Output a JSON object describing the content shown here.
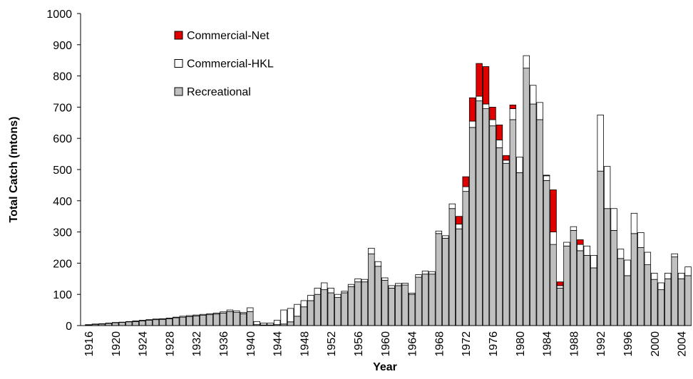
{
  "chart_data": {
    "type": "stacked_bar",
    "x_label": "Year",
    "y_label": "Total Catch (mtons)",
    "categories": [
      "1916",
      null,
      null,
      null,
      "1920",
      null,
      null,
      null,
      "1924",
      null,
      null,
      null,
      "1928",
      null,
      null,
      null,
      "1932",
      null,
      null,
      null,
      "1936",
      null,
      null,
      null,
      "1940",
      null,
      null,
      null,
      "1944",
      null,
      null,
      null,
      "1948",
      null,
      null,
      null,
      "1952",
      null,
      null,
      null,
      "1956",
      null,
      null,
      null,
      "1960",
      null,
      null,
      null,
      "1964",
      null,
      null,
      null,
      "1968",
      null,
      null,
      null,
      "1972",
      null,
      null,
      null,
      "1976",
      null,
      null,
      null,
      "1980",
      null,
      null,
      null,
      "1984",
      null,
      null,
      null,
      "1988",
      null,
      null,
      null,
      "1992",
      null,
      null,
      null,
      "1996",
      null,
      null,
      null,
      "2000",
      null,
      null,
      null,
      "2004",
      null
    ],
    "series": [
      {
        "name": "Recreational",
        "color": "#c0c0c0",
        "values": [
          2,
          4,
          5,
          7,
          9,
          10,
          12,
          13,
          15,
          17,
          19,
          20,
          22,
          25,
          27,
          29,
          31,
          33,
          35,
          37,
          40,
          45,
          42,
          38,
          45,
          3,
          2,
          2,
          3,
          5,
          12,
          30,
          60,
          80,
          100,
          115,
          105,
          90,
          105,
          125,
          140,
          140,
          230,
          190,
          145,
          120,
          128,
          130,
          100,
          155,
          165,
          165,
          295,
          280,
          375,
          310,
          430,
          635,
          720,
          695,
          640,
          570,
          520,
          660,
          490,
          825,
          710,
          660,
          465,
          260,
          120,
          255,
          305,
          240,
          225,
          185,
          495,
          375,
          305,
          215,
          160,
          295,
          250,
          195,
          148,
          115,
          150,
          220,
          150,
          160
        ]
      },
      {
        "name": "Commercial-HKL",
        "color": "#ffffff",
        "values": [
          1,
          1,
          1,
          1,
          1,
          1,
          1,
          2,
          2,
          2,
          2,
          2,
          2,
          2,
          3,
          3,
          3,
          3,
          3,
          3,
          4,
          5,
          5,
          4,
          12,
          10,
          6,
          6,
          14,
          45,
          43,
          38,
          20,
          17,
          20,
          22,
          15,
          10,
          5,
          7,
          10,
          8,
          18,
          15,
          8,
          8,
          7,
          6,
          4,
          8,
          10,
          8,
          8,
          8,
          15,
          15,
          15,
          20,
          15,
          15,
          20,
          25,
          10,
          35,
          50,
          40,
          60,
          55,
          15,
          40,
          8,
          12,
          12,
          20,
          30,
          40,
          180,
          135,
          70,
          30,
          50,
          65,
          48,
          40,
          20,
          22,
          18,
          10,
          18,
          28
        ]
      },
      {
        "name": "Commercial-Net",
        "color": "#e00000",
        "values": [
          0,
          0,
          0,
          0,
          0,
          0,
          0,
          0,
          0,
          0,
          0,
          0,
          0,
          0,
          0,
          0,
          0,
          0,
          0,
          0,
          0,
          0,
          0,
          0,
          0,
          0,
          0,
          0,
          0,
          0,
          0,
          0,
          0,
          0,
          0,
          0,
          0,
          0,
          0,
          0,
          0,
          0,
          0,
          0,
          0,
          0,
          0,
          0,
          0,
          0,
          0,
          0,
          0,
          0,
          0,
          25,
          32,
          75,
          105,
          120,
          40,
          48,
          15,
          12,
          0,
          0,
          0,
          0,
          2,
          135,
          12,
          0,
          0,
          15,
          0,
          0,
          0,
          0,
          0,
          0,
          0,
          0,
          0,
          0,
          0,
          0,
          0,
          0,
          0,
          0
        ]
      }
    ],
    "ylim": [
      0,
      1000
    ],
    "yticks": [
      0,
      100,
      200,
      300,
      400,
      500,
      600,
      700,
      800,
      900,
      1000
    ]
  }
}
